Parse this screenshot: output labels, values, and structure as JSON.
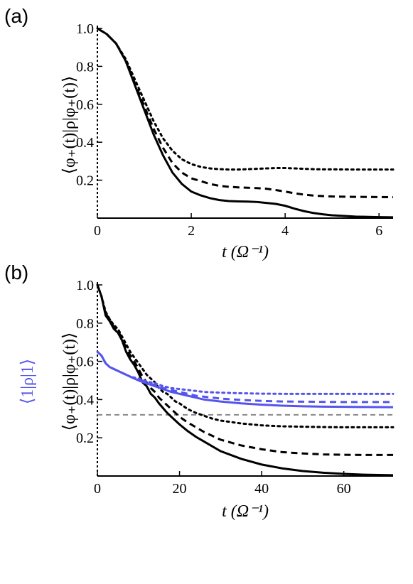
{
  "chart_data": [
    {
      "panel": "(a)",
      "type": "line",
      "xlabel": "t (Ω⁻¹)",
      "ylabel": "⟨φ₊(t)|ρ|φ₊(t)⟩",
      "xlim": [
        0,
        6.3
      ],
      "ylim": [
        0,
        1.0
      ],
      "xticks": [
        0,
        2,
        4,
        6
      ],
      "yticks": [
        0.2,
        0.4,
        0.6,
        0.8,
        1.0
      ],
      "grid": false,
      "series": [
        {
          "style": "solid",
          "color": "#000000",
          "x": [
            0,
            0.2,
            0.4,
            0.6,
            0.8,
            1.0,
            1.2,
            1.4,
            1.6,
            1.8,
            2.0,
            2.2,
            2.4,
            2.6,
            2.8,
            3.0,
            3.2,
            3.4,
            3.6,
            3.8,
            4.0,
            4.2,
            4.4,
            4.6,
            4.8,
            5.0,
            5.5,
            6.0,
            6.3
          ],
          "y": [
            1.0,
            0.97,
            0.92,
            0.83,
            0.7,
            0.57,
            0.44,
            0.33,
            0.24,
            0.18,
            0.14,
            0.12,
            0.105,
            0.095,
            0.09,
            0.088,
            0.087,
            0.085,
            0.08,
            0.075,
            0.065,
            0.05,
            0.037,
            0.027,
            0.02,
            0.015,
            0.008,
            0.005,
            0.004
          ]
        },
        {
          "style": "dashed",
          "color": "#000000",
          "x": [
            0,
            0.2,
            0.4,
            0.6,
            0.8,
            1.0,
            1.2,
            1.4,
            1.6,
            1.8,
            2.0,
            2.2,
            2.4,
            2.6,
            2.8,
            3.0,
            3.2,
            3.4,
            3.6,
            3.8,
            4.0,
            4.2,
            4.4,
            4.6,
            4.8,
            5.0,
            5.5,
            6.0,
            6.3
          ],
          "y": [
            1.0,
            0.97,
            0.92,
            0.83,
            0.71,
            0.59,
            0.47,
            0.37,
            0.29,
            0.24,
            0.21,
            0.195,
            0.18,
            0.17,
            0.165,
            0.162,
            0.16,
            0.158,
            0.155,
            0.148,
            0.14,
            0.131,
            0.124,
            0.119,
            0.116,
            0.114,
            0.112,
            0.111,
            0.11
          ]
        },
        {
          "style": "dotted",
          "color": "#000000",
          "x": [
            0,
            0.2,
            0.4,
            0.6,
            0.8,
            1.0,
            1.2,
            1.4,
            1.6,
            1.8,
            2.0,
            2.2,
            2.4,
            2.6,
            2.8,
            3.0,
            3.2,
            3.4,
            3.6,
            3.8,
            4.0,
            4.2,
            4.4,
            4.6,
            4.8,
            5.0,
            5.5,
            6.0,
            6.3
          ],
          "y": [
            1.0,
            0.97,
            0.92,
            0.84,
            0.73,
            0.62,
            0.51,
            0.42,
            0.355,
            0.31,
            0.285,
            0.27,
            0.262,
            0.258,
            0.256,
            0.256,
            0.258,
            0.26,
            0.262,
            0.264,
            0.264,
            0.262,
            0.26,
            0.258,
            0.257,
            0.257,
            0.256,
            0.256,
            0.256
          ]
        }
      ]
    },
    {
      "panel": "(b)",
      "type": "line",
      "xlabel": "t (Ω⁻¹)",
      "ylabel": "⟨φ₊(t)|ρ|φ₊(t)⟩",
      "ylabel2": "⟨1|ρ|1⟩",
      "xlim": [
        0,
        72
      ],
      "ylim": [
        0,
        1.0
      ],
      "xticks": [
        0,
        20,
        40,
        60
      ],
      "yticks": [
        0.2,
        0.4,
        0.6,
        0.8,
        1.0
      ],
      "grid": false,
      "hline": {
        "y": 0.32,
        "style": "dashed",
        "color": "#888888"
      },
      "series": [
        {
          "style": "solid",
          "color": "#000000",
          "x": [
            0,
            1,
            2,
            3,
            4,
            5,
            6,
            7,
            8,
            9,
            10,
            11,
            12,
            13,
            14,
            15,
            16,
            17,
            18,
            19,
            20,
            22,
            24,
            26,
            28,
            30,
            35,
            40,
            45,
            50,
            55,
            60,
            65,
            72
          ],
          "y": [
            1.0,
            0.94,
            0.84,
            0.81,
            0.77,
            0.75,
            0.71,
            0.65,
            0.61,
            0.58,
            0.54,
            0.49,
            0.47,
            0.43,
            0.41,
            0.38,
            0.355,
            0.33,
            0.31,
            0.29,
            0.27,
            0.235,
            0.205,
            0.18,
            0.155,
            0.13,
            0.09,
            0.06,
            0.04,
            0.026,
            0.017,
            0.011,
            0.007,
            0.004
          ]
        },
        {
          "style": "dashed",
          "color": "#000000",
          "x": [
            0,
            1,
            2,
            3,
            4,
            5,
            6,
            7,
            8,
            9,
            10,
            11,
            12,
            13,
            14,
            15,
            16,
            17,
            18,
            19,
            20,
            22,
            24,
            26,
            28,
            30,
            35,
            40,
            45,
            50,
            55,
            60,
            65,
            72
          ],
          "y": [
            1.0,
            0.94,
            0.85,
            0.82,
            0.78,
            0.76,
            0.72,
            0.67,
            0.63,
            0.6,
            0.56,
            0.52,
            0.49,
            0.46,
            0.44,
            0.41,
            0.39,
            0.37,
            0.35,
            0.33,
            0.31,
            0.28,
            0.255,
            0.23,
            0.21,
            0.19,
            0.16,
            0.14,
            0.125,
            0.118,
            0.113,
            0.111,
            0.11,
            0.11
          ]
        },
        {
          "style": "dotted",
          "color": "#000000",
          "x": [
            0,
            1,
            2,
            3,
            4,
            5,
            6,
            7,
            8,
            9,
            10,
            11,
            12,
            13,
            14,
            15,
            16,
            17,
            18,
            19,
            20,
            22,
            24,
            26,
            28,
            30,
            35,
            40,
            45,
            50,
            55,
            60,
            65,
            72
          ],
          "y": [
            1.0,
            0.94,
            0.86,
            0.82,
            0.79,
            0.77,
            0.73,
            0.69,
            0.65,
            0.62,
            0.59,
            0.56,
            0.53,
            0.51,
            0.49,
            0.46,
            0.44,
            0.43,
            0.41,
            0.39,
            0.38,
            0.35,
            0.33,
            0.315,
            0.3,
            0.29,
            0.275,
            0.265,
            0.26,
            0.258,
            0.256,
            0.255,
            0.255,
            0.255
          ]
        },
        {
          "style": "solid",
          "color": "#5555ee",
          "x": [
            0,
            1,
            2,
            3,
            4,
            5,
            6,
            7,
            8,
            9,
            10,
            12,
            14,
            16,
            18,
            20,
            22,
            24,
            26,
            28,
            30,
            35,
            40,
            45,
            50,
            55,
            60,
            65,
            72
          ],
          "y": [
            0.65,
            0.63,
            0.59,
            0.57,
            0.56,
            0.55,
            0.54,
            0.53,
            0.52,
            0.51,
            0.5,
            0.485,
            0.47,
            0.455,
            0.44,
            0.43,
            0.42,
            0.41,
            0.4,
            0.395,
            0.39,
            0.38,
            0.373,
            0.368,
            0.365,
            0.363,
            0.362,
            0.361,
            0.36
          ]
        },
        {
          "style": "dashed",
          "color": "#5555ee",
          "x": [
            0,
            1,
            2,
            3,
            4,
            5,
            6,
            7,
            8,
            9,
            10,
            12,
            14,
            16,
            18,
            20,
            22,
            24,
            26,
            28,
            30,
            35,
            40,
            45,
            50,
            55,
            60,
            65,
            72
          ],
          "y": [
            0.65,
            0.63,
            0.59,
            0.57,
            0.56,
            0.55,
            0.54,
            0.53,
            0.52,
            0.51,
            0.505,
            0.49,
            0.475,
            0.46,
            0.45,
            0.44,
            0.43,
            0.42,
            0.415,
            0.41,
            0.405,
            0.398,
            0.393,
            0.39,
            0.389,
            0.388,
            0.387,
            0.387,
            0.387
          ]
        },
        {
          "style": "dotted",
          "color": "#5555ee",
          "x": [
            0,
            1,
            2,
            3,
            4,
            5,
            6,
            7,
            8,
            9,
            10,
            12,
            14,
            16,
            18,
            20,
            22,
            24,
            26,
            28,
            30,
            35,
            40,
            45,
            50,
            55,
            60,
            65,
            72
          ],
          "y": [
            0.65,
            0.63,
            0.59,
            0.57,
            0.56,
            0.55,
            0.54,
            0.53,
            0.52,
            0.515,
            0.51,
            0.495,
            0.485,
            0.47,
            0.46,
            0.455,
            0.45,
            0.445,
            0.44,
            0.438,
            0.436,
            0.433,
            0.431,
            0.43,
            0.43,
            0.43,
            0.43,
            0.43,
            0.43
          ]
        }
      ]
    }
  ],
  "colors": {
    "axis": "#000000",
    "blue": "#5555ee",
    "reference": "#888888"
  }
}
